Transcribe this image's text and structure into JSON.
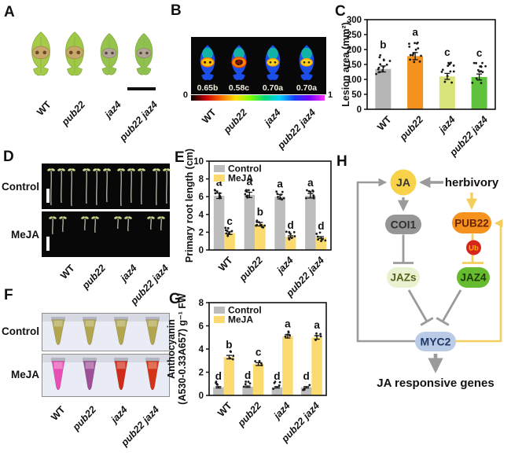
{
  "genotypes": [
    "WT",
    "pub22",
    "jaz4",
    "pub22 jaz4"
  ],
  "treatments": [
    "Control",
    "MeJA"
  ],
  "panels": {
    "A": {
      "letter": "A"
    },
    "B": {
      "letter": "B",
      "leaf_values": [
        "0.65b",
        "0.58c",
        "0.70a",
        "0.70a"
      ],
      "scale_min": "0",
      "scale_max": "1",
      "colorbar_colors": [
        "#000000",
        "#c80000",
        "#ff6a00",
        "#ffe000",
        "#7fff00",
        "#00d97f",
        "#00cfff",
        "#1a3bff",
        "#7a00ff",
        "#ff30ff"
      ]
    },
    "C": {
      "letter": "C"
    },
    "D": {
      "letter": "D",
      "row_labels": [
        "Control",
        "MeJA"
      ]
    },
    "E": {
      "letter": "E"
    },
    "F": {
      "letter": "F",
      "row_labels": [
        "Control",
        "MeJA"
      ],
      "control_color": "#b1a54e",
      "meja_colors": [
        "#e84fb5",
        "#9e4f97",
        "#d02a18",
        "#d43318"
      ]
    },
    "G": {
      "letter": "G"
    },
    "H": {
      "letter": "H",
      "nodes": {
        "ja": "JA",
        "herbivory": "herbivory",
        "coi1": "COI1",
        "pub22": "PUB22",
        "ub": "Ub",
        "jazs": "JAZs",
        "jaz4": "JAZ4",
        "myc2": "MYC2",
        "output": "JA responsive genes"
      },
      "colors": {
        "ja": "#f8d24a",
        "coi1": "#969696",
        "pub22": "#f6921e",
        "ub": "#d6251a",
        "jazs": "#e9f2d0",
        "jaz4": "#67bb2f",
        "myc2": "#b9cbe7",
        "gray_edge": "#9b9b9b",
        "yellow_edge": "#f5cf5e"
      }
    }
  },
  "chart_data": [
    {
      "id": "C",
      "type": "bar",
      "ylabel": "Lesion area (mm²)",
      "categories": [
        "WT",
        "pub22",
        "jaz4",
        "pub22 jaz4"
      ],
      "values": [
        135,
        178,
        110,
        108
      ],
      "errors": [
        10,
        12,
        10,
        10
      ],
      "letters": [
        "b",
        "a",
        "c",
        "c"
      ],
      "bar_colors": [
        "#b5b5b5",
        "#f5921e",
        "#d9e47b",
        "#5ec23d"
      ],
      "ylim": [
        0,
        300
      ],
      "yticks": [
        0,
        50,
        100,
        150,
        200,
        250,
        300
      ],
      "grid": false,
      "legend": null
    },
    {
      "id": "E",
      "type": "bar",
      "ylabel": "Primary root length (cm)",
      "categories": [
        "WT",
        "pub22",
        "jaz4",
        "pub22 jaz4"
      ],
      "series": [
        {
          "name": "Control",
          "color": "#bcbcbc",
          "values": [
            6.1,
            6.2,
            6.0,
            6.1
          ],
          "errors": [
            0.3,
            0.3,
            0.25,
            0.25
          ],
          "letters": [
            "a",
            "a",
            "a",
            "a"
          ]
        },
        {
          "name": "MeJA",
          "color": "#fbdb6f",
          "values": [
            1.9,
            2.9,
            1.5,
            1.4
          ],
          "errors": [
            0.15,
            0.2,
            0.1,
            0.1
          ],
          "letters": [
            "c",
            "b",
            "d",
            "d"
          ]
        }
      ],
      "ylim": [
        0,
        10
      ],
      "yticks": [
        0,
        2,
        4,
        6,
        8,
        10
      ],
      "grid": false,
      "legend_position": "top-left"
    },
    {
      "id": "G",
      "type": "bar",
      "ylabel_lines": [
        "Anthocyanin",
        "(A530-0.33A657) g⁻¹ FW"
      ],
      "categories": [
        "WT",
        "pub22",
        "jaz4",
        "pub22 jaz4"
      ],
      "series": [
        {
          "name": "Control",
          "color": "#bcbcbc",
          "values": [
            0.7,
            0.75,
            0.7,
            0.7
          ],
          "errors": [
            0.06,
            0.06,
            0.06,
            0.06
          ],
          "letters": [
            "d",
            "d",
            "d",
            "d"
          ]
        },
        {
          "name": "MeJA",
          "color": "#fbdb6f",
          "values": [
            3.3,
            2.7,
            5.1,
            5.0
          ],
          "errors": [
            0.15,
            0.12,
            0.15,
            0.15
          ],
          "letters": [
            "b",
            "c",
            "a",
            "a"
          ]
        }
      ],
      "ylim": [
        0,
        8
      ],
      "yticks": [
        0,
        2,
        4,
        6,
        8
      ],
      "grid": false,
      "legend_position": "top-left"
    }
  ]
}
